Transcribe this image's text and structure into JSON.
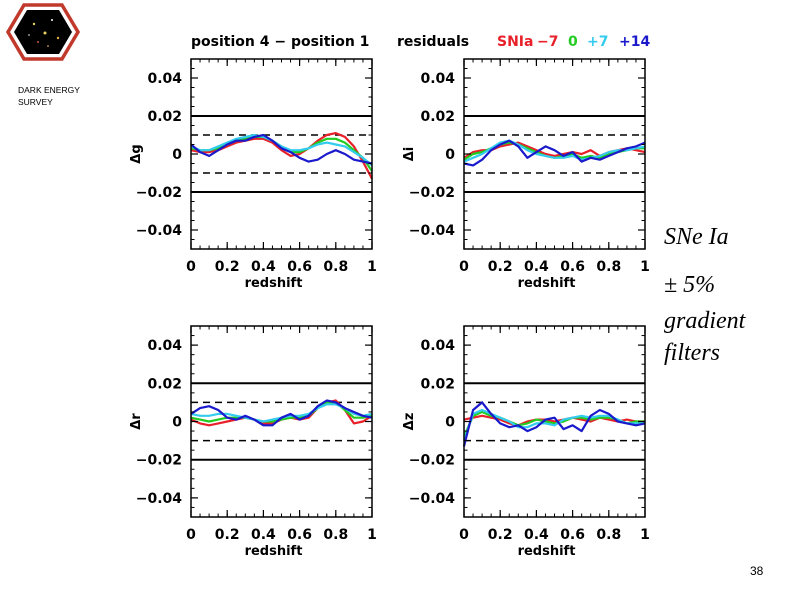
{
  "logo": {
    "line1": "DARK ENERGY",
    "line2": "SURVEY",
    "colors": {
      "hex": "#c0392b",
      "field": "#000000"
    }
  },
  "header": {
    "title": "position 4 − position 1",
    "residuals": "residuals",
    "legend": [
      {
        "label": "SNIa",
        "color": "#e8202a"
      },
      {
        "label": "−7",
        "color": "#e8202a"
      },
      {
        "label": "0",
        "color": "#22cc22"
      },
      {
        "label": "+7",
        "color": "#33ccee"
      },
      {
        "label": "+14",
        "color": "#1a1acc"
      }
    ]
  },
  "side_text": {
    "line1": "SNe Ia",
    "line2": "± 5%",
    "line3": "gradient",
    "line4": "filters"
  },
  "page_number": "38",
  "chart_data": [
    {
      "id": "g",
      "type": "line",
      "ylabel": "Δg",
      "xlabel": "redshift",
      "xlim": [
        0,
        1
      ],
      "ylim": [
        -0.05,
        0.05
      ],
      "xticks": [
        "0",
        "0.2",
        "0.4",
        "0.6",
        "0.8",
        "1"
      ],
      "yticks": [
        "0.04",
        "0.02",
        "0",
        "−0.02",
        "−0.04"
      ],
      "solid_lines": [
        0.02,
        -0.02
      ],
      "dashed_lines": [
        0.01,
        -0.01
      ],
      "x": [
        0,
        0.05,
        0.1,
        0.15,
        0.2,
        0.25,
        0.3,
        0.35,
        0.4,
        0.45,
        0.5,
        0.55,
        0.6,
        0.65,
        0.7,
        0.75,
        0.8,
        0.85,
        0.9,
        0.95,
        1
      ],
      "series": [
        {
          "name": "−7",
          "color": "#e8202a",
          "values": [
            0.002,
            0.001,
            0.001,
            0.002,
            0.004,
            0.006,
            0.007,
            0.008,
            0.008,
            0.006,
            0.002,
            -0.001,
            0.0,
            0.003,
            0.007,
            0.01,
            0.011,
            0.009,
            0.004,
            -0.004,
            -0.013
          ]
        },
        {
          "name": "0",
          "color": "#22cc22",
          "values": [
            0.003,
            0.002,
            0.002,
            0.003,
            0.005,
            0.007,
            0.008,
            0.009,
            0.009,
            0.007,
            0.004,
            0.001,
            0.001,
            0.003,
            0.006,
            0.008,
            0.008,
            0.006,
            0.002,
            -0.002,
            -0.009
          ]
        },
        {
          "name": "+7",
          "color": "#33ccee",
          "values": [
            0.004,
            0.002,
            0.002,
            0.004,
            0.006,
            0.008,
            0.009,
            0.01,
            0.009,
            0.007,
            0.004,
            0.002,
            0.002,
            0.003,
            0.005,
            0.006,
            0.005,
            0.004,
            0.001,
            -0.002,
            -0.006
          ]
        },
        {
          "name": "+14",
          "color": "#1a1acc",
          "values": [
            0.005,
            0.001,
            -0.001,
            0.002,
            0.005,
            0.007,
            0.007,
            0.009,
            0.01,
            0.007,
            0.003,
            0.001,
            -0.002,
            -0.004,
            -0.003,
            0.0,
            0.002,
            0.0,
            -0.003,
            -0.004,
            -0.005
          ]
        }
      ]
    },
    {
      "id": "i",
      "type": "line",
      "ylabel": "Δi",
      "xlabel": "redshift",
      "xlim": [
        0,
        1
      ],
      "ylim": [
        -0.05,
        0.05
      ],
      "xticks": [
        "0",
        "0.2",
        "0.4",
        "0.6",
        "0.8",
        "1"
      ],
      "yticks": [
        "0.04",
        "0.02",
        "0",
        "−0.02",
        "−0.04"
      ],
      "solid_lines": [
        0.02,
        -0.02
      ],
      "dashed_lines": [
        0.01,
        -0.01
      ],
      "x": [
        0,
        0.05,
        0.1,
        0.15,
        0.2,
        0.25,
        0.3,
        0.35,
        0.4,
        0.45,
        0.5,
        0.55,
        0.6,
        0.65,
        0.7,
        0.75,
        0.8,
        0.85,
        0.9,
        0.95,
        1
      ],
      "series": [
        {
          "name": "−7",
          "color": "#e8202a",
          "values": [
            -0.002,
            0.001,
            0.002,
            0.002,
            0.004,
            0.005,
            0.006,
            0.004,
            0.002,
            0.0,
            -0.001,
            0.0,
            0.001,
            0.0,
            0.002,
            -0.001,
            0.001,
            0.002,
            0.003,
            0.002,
            0.001
          ]
        },
        {
          "name": "0",
          "color": "#22cc22",
          "values": [
            -0.003,
            0.0,
            0.001,
            0.003,
            0.005,
            0.006,
            0.005,
            0.003,
            0.001,
            -0.001,
            -0.002,
            -0.001,
            0.0,
            -0.002,
            -0.001,
            -0.002,
            0.0,
            0.001,
            0.002,
            0.003,
            0.003
          ]
        },
        {
          "name": "+7",
          "color": "#33ccee",
          "values": [
            -0.004,
            -0.002,
            0.0,
            0.003,
            0.006,
            0.007,
            0.005,
            0.002,
            0.0,
            -0.001,
            -0.002,
            -0.002,
            -0.001,
            -0.003,
            -0.002,
            -0.001,
            0.001,
            0.002,
            0.002,
            0.003,
            0.004
          ]
        },
        {
          "name": "+14",
          "color": "#1a1acc",
          "values": [
            -0.005,
            -0.006,
            -0.003,
            0.002,
            0.005,
            0.007,
            0.004,
            -0.002,
            0.001,
            0.004,
            0.002,
            -0.001,
            0.001,
            -0.004,
            -0.002,
            -0.003,
            -0.001,
            0.001,
            0.003,
            0.004,
            0.006
          ]
        }
      ]
    },
    {
      "id": "r",
      "type": "line",
      "ylabel": "Δr",
      "xlabel": "redshift",
      "xlim": [
        0,
        1
      ],
      "ylim": [
        -0.05,
        0.05
      ],
      "xticks": [
        "0",
        "0.2",
        "0.4",
        "0.6",
        "0.8",
        "1"
      ],
      "yticks": [
        "0.04",
        "0.02",
        "0",
        "−0.02",
        "−0.04"
      ],
      "solid_lines": [
        0.02,
        -0.02
      ],
      "dashed_lines": [
        0.01,
        -0.01
      ],
      "x": [
        0,
        0.05,
        0.1,
        0.15,
        0.2,
        0.25,
        0.3,
        0.35,
        0.4,
        0.45,
        0.5,
        0.55,
        0.6,
        0.65,
        0.7,
        0.75,
        0.8,
        0.85,
        0.9,
        0.95,
        1
      ],
      "series": [
        {
          "name": "−7",
          "color": "#e8202a",
          "values": [
            0.001,
            -0.001,
            -0.002,
            -0.001,
            0.0,
            0.001,
            0.002,
            0.001,
            -0.001,
            -0.001,
            0.001,
            0.002,
            0.001,
            0.002,
            0.007,
            0.01,
            0.011,
            0.006,
            -0.001,
            0.0,
            0.003
          ]
        },
        {
          "name": "0",
          "color": "#22cc22",
          "values": [
            0.002,
            0.001,
            0.0,
            0.001,
            0.002,
            0.002,
            0.002,
            0.001,
            0.0,
            0.0,
            0.001,
            0.002,
            0.002,
            0.003,
            0.007,
            0.01,
            0.01,
            0.006,
            0.002,
            0.002,
            0.003
          ]
        },
        {
          "name": "+7",
          "color": "#33ccee",
          "values": [
            0.004,
            0.003,
            0.003,
            0.004,
            0.004,
            0.003,
            0.002,
            0.001,
            0.0,
            0.001,
            0.002,
            0.003,
            0.003,
            0.004,
            0.007,
            0.009,
            0.009,
            0.007,
            0.004,
            0.003,
            0.004
          ]
        },
        {
          "name": "+14",
          "color": "#1a1acc",
          "values": [
            0.004,
            0.007,
            0.008,
            0.006,
            0.002,
            0.001,
            0.003,
            0.001,
            -0.002,
            -0.002,
            0.002,
            0.004,
            0.001,
            0.003,
            0.008,
            0.011,
            0.01,
            0.007,
            0.005,
            0.003,
            0.002
          ]
        }
      ]
    },
    {
      "id": "z",
      "type": "line",
      "ylabel": "Δz",
      "xlabel": "redshift",
      "xlim": [
        0,
        1
      ],
      "ylim": [
        -0.05,
        0.05
      ],
      "xticks": [
        "0",
        "0.2",
        "0.4",
        "0.6",
        "0.8",
        "1"
      ],
      "yticks": [
        "0.04",
        "0.02",
        "0",
        "−0.02",
        "−0.04"
      ],
      "solid_lines": [
        0.02,
        -0.02
      ],
      "dashed_lines": [
        0.01,
        -0.01
      ],
      "x": [
        0,
        0.05,
        0.1,
        0.15,
        0.2,
        0.25,
        0.3,
        0.35,
        0.4,
        0.45,
        0.5,
        0.55,
        0.6,
        0.65,
        0.7,
        0.75,
        0.8,
        0.85,
        0.9,
        0.95,
        1
      ],
      "series": [
        {
          "name": "−7",
          "color": "#e8202a",
          "values": [
            0.001,
            0.002,
            0.003,
            0.002,
            0.001,
            -0.001,
            -0.002,
            0.0,
            0.001,
            0.001,
            0.0,
            0.001,
            0.002,
            0.001,
            0.0,
            0.002,
            0.001,
            0.0,
            0.001,
            0.0,
            0.0
          ]
        },
        {
          "name": "0",
          "color": "#22cc22",
          "values": [
            -0.008,
            0.003,
            0.005,
            0.003,
            0.002,
            0.0,
            -0.002,
            -0.001,
            0.001,
            0.0,
            -0.001,
            0.0,
            0.002,
            0.002,
            0.001,
            0.002,
            0.002,
            0.001,
            -0.001,
            0.0,
            0.0
          ]
        },
        {
          "name": "+7",
          "color": "#33ccee",
          "values": [
            -0.01,
            0.004,
            0.006,
            0.004,
            0.002,
            0.0,
            -0.003,
            -0.003,
            -0.001,
            -0.001,
            -0.002,
            0.001,
            0.002,
            0.003,
            0.002,
            0.003,
            0.003,
            0.001,
            -0.001,
            -0.001,
            -0.001
          ]
        },
        {
          "name": "+14",
          "color": "#1a1acc",
          "values": [
            -0.013,
            0.006,
            0.01,
            0.004,
            -0.001,
            -0.003,
            -0.002,
            -0.005,
            -0.003,
            0.001,
            0.002,
            -0.004,
            -0.002,
            -0.005,
            0.003,
            0.006,
            0.004,
            0.0,
            -0.001,
            -0.002,
            -0.001
          ]
        }
      ]
    }
  ]
}
